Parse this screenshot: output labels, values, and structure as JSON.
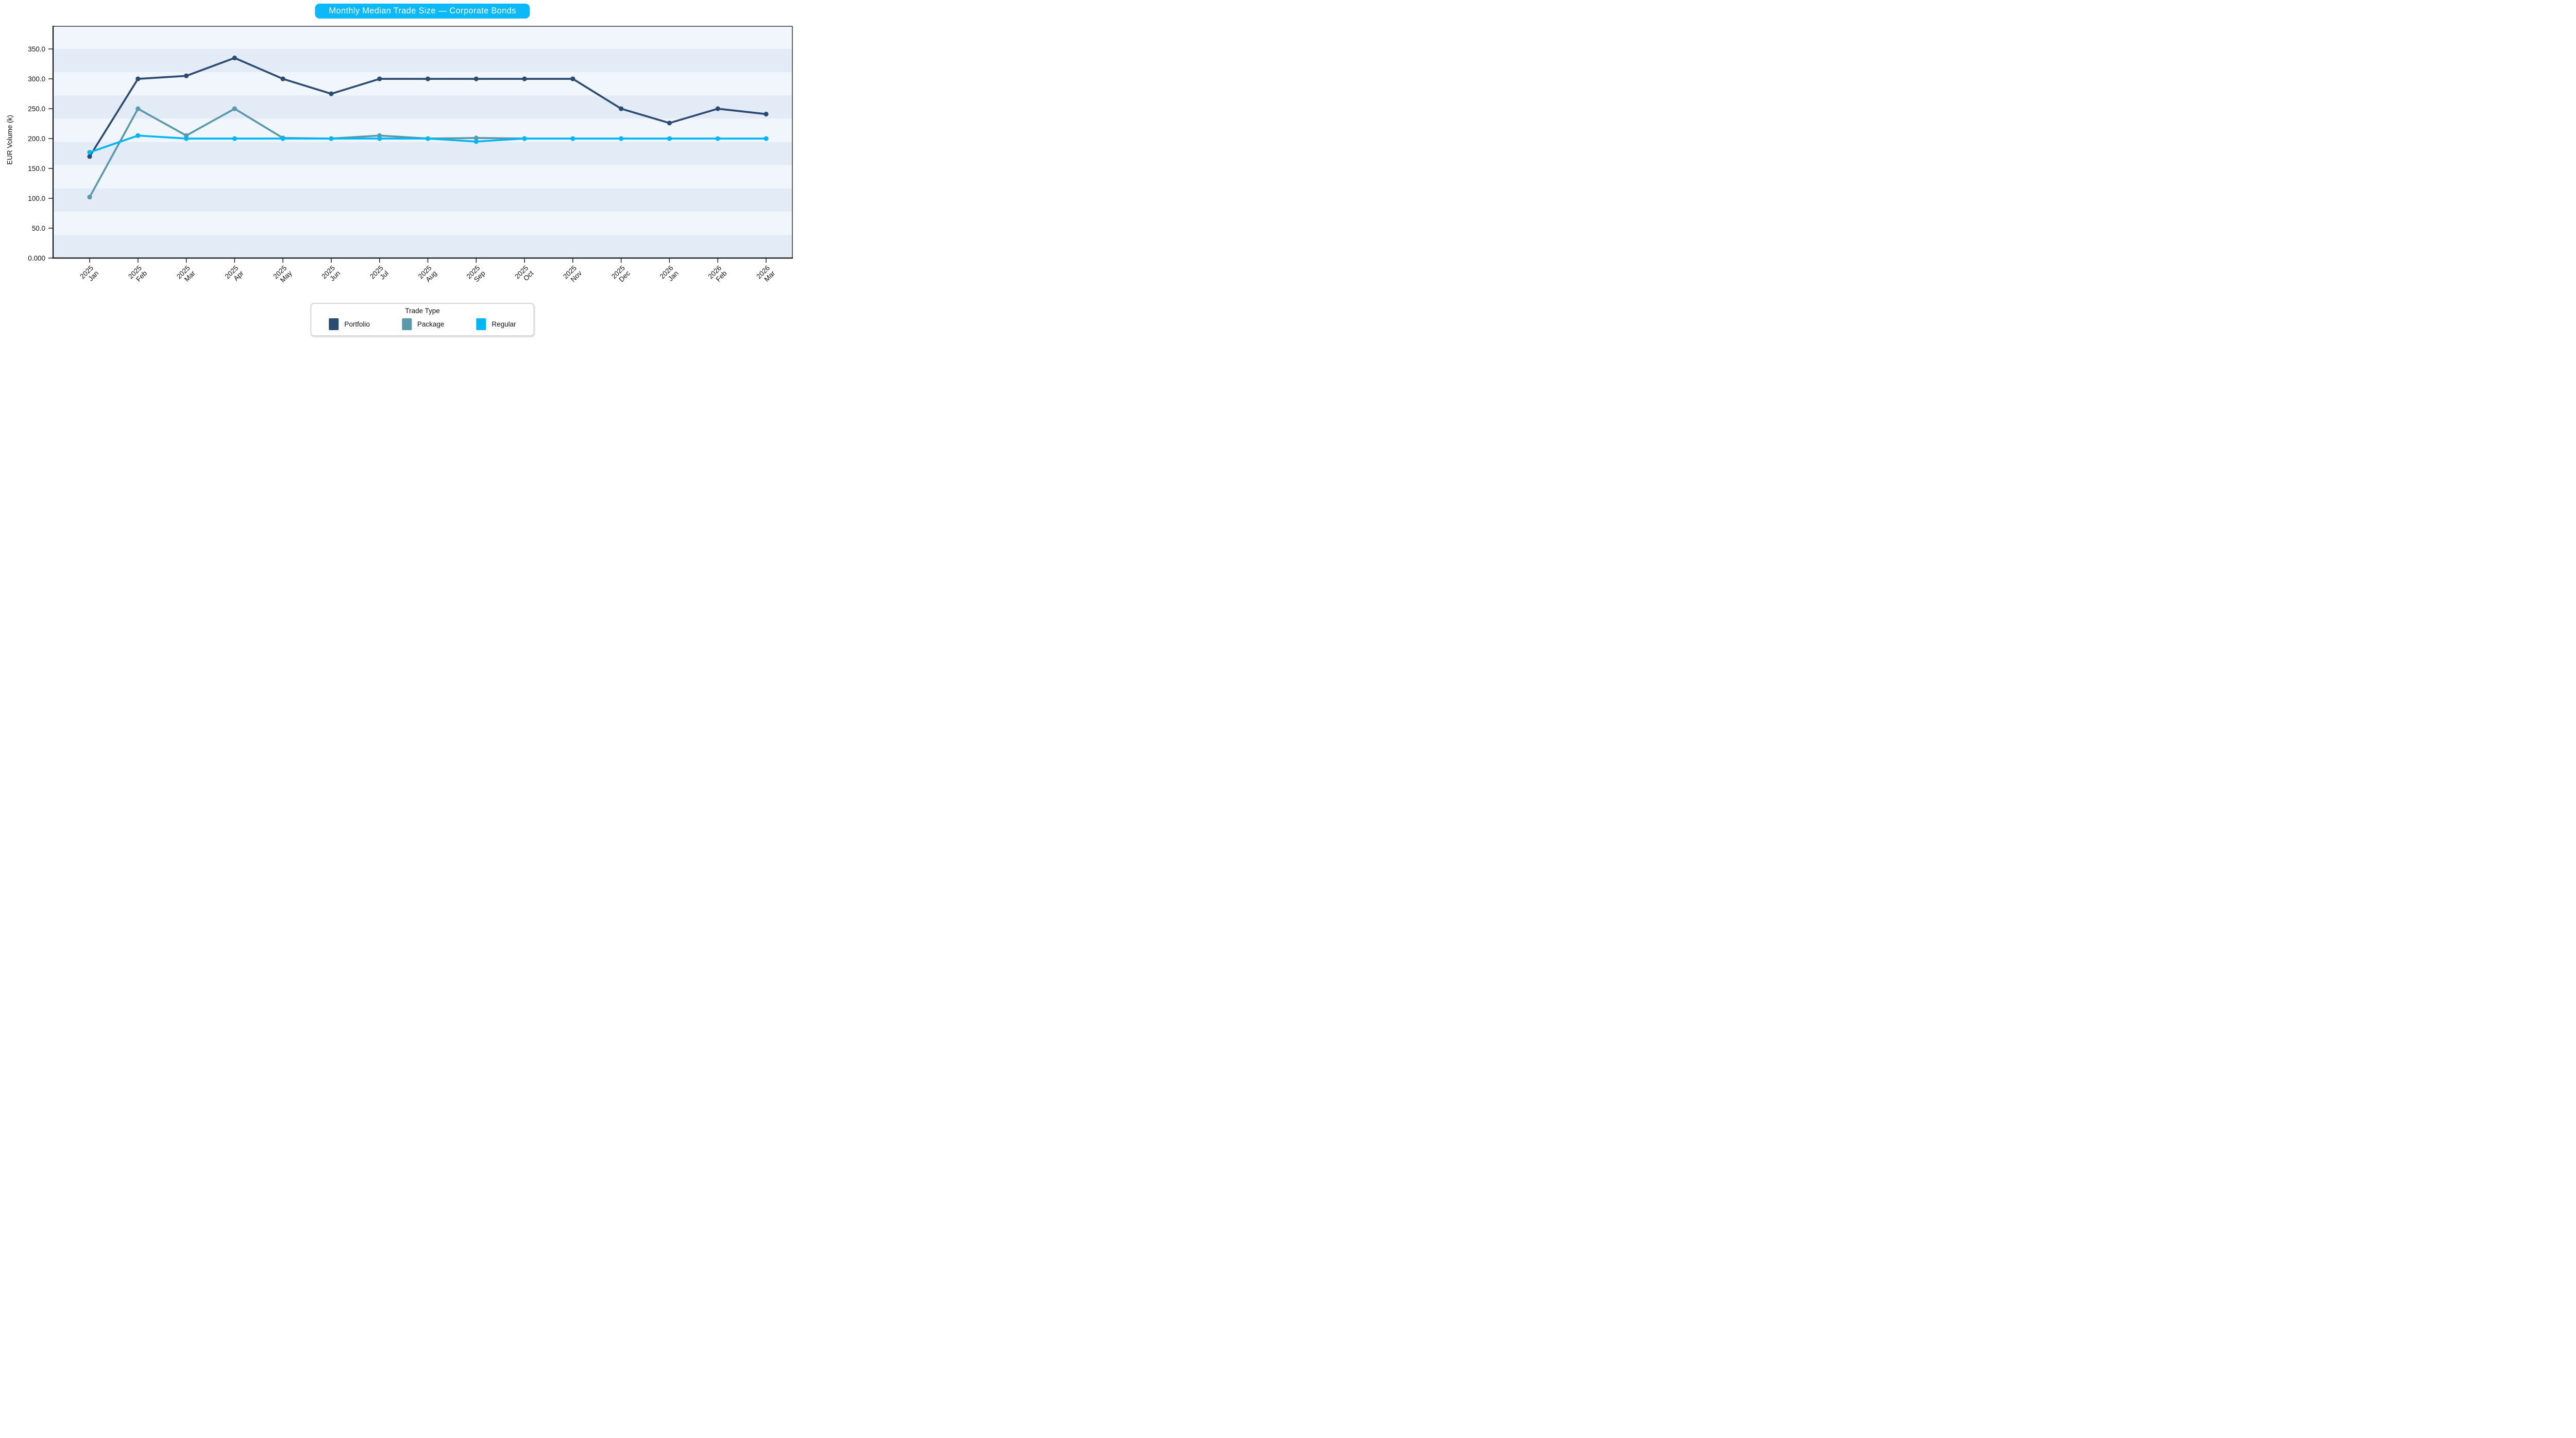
{
  "title": {
    "text": "Monthly Median Trade Size — Corporate Bonds",
    "bg_color": "#0bb9f8",
    "text_color": "#ffffff"
  },
  "y_axis": {
    "label": "EUR Volume (k)",
    "tick_labels": [
      "0.000",
      "50.0",
      "100.0",
      "150.0",
      "200.0",
      "250.0",
      "300.0",
      "350.0"
    ],
    "tick_values": [
      0,
      50,
      100,
      150,
      200,
      250,
      300,
      350
    ]
  },
  "legend": {
    "title": "Trade Type",
    "items": [
      {
        "label": "Portfolio",
        "color": "#2b4b72"
      },
      {
        "label": "Package",
        "color": "#5a99a9"
      },
      {
        "label": "Regular",
        "color": "#00b6f4"
      }
    ]
  },
  "chart_data": {
    "type": "line",
    "title": "Monthly Median Trade Size — Corporate Bonds",
    "xlabel": "",
    "ylabel": "EUR Volume (k)",
    "categories": [
      "2025 Jan",
      "2025 Feb",
      "2025 Mar",
      "2025 Apr",
      "2025 May",
      "2025 Jun",
      "2025 Jul",
      "2025 Aug",
      "2025 Sep",
      "2025 Oct",
      "2025 Nov",
      "2025 Dec",
      "2026 Jan",
      "2026 Feb",
      "2026 Mar"
    ],
    "series": [
      {
        "name": "Portfolio",
        "color": "#2b4b72",
        "values": [
          170,
          300,
          305,
          335,
          300,
          275,
          300,
          300,
          300,
          300,
          300,
          250,
          226,
          250,
          241
        ]
      },
      {
        "name": "Package",
        "color": "#5a99a9",
        "values": [
          102,
          250,
          205,
          250,
          201,
          200,
          205,
          200,
          201,
          200,
          null,
          null,
          null,
          null,
          null
        ]
      },
      {
        "name": "Regular",
        "color": "#00b6f4",
        "values": [
          177,
          205,
          200,
          200,
          200,
          200,
          200,
          200,
          195,
          200,
          200,
          200,
          200,
          200,
          200
        ]
      }
    ],
    "ylim": [
      0,
      388
    ],
    "grid": false,
    "legend_position": "bottom-center",
    "background_stripes": {
      "band_size": 38.889,
      "range": [
        0,
        350
      ],
      "dark_color": "#e3ebf6",
      "light_color": "#f1f6fc"
    },
    "marker": "circle",
    "line_width": 3.7,
    "marker_radius": 4.6
  }
}
